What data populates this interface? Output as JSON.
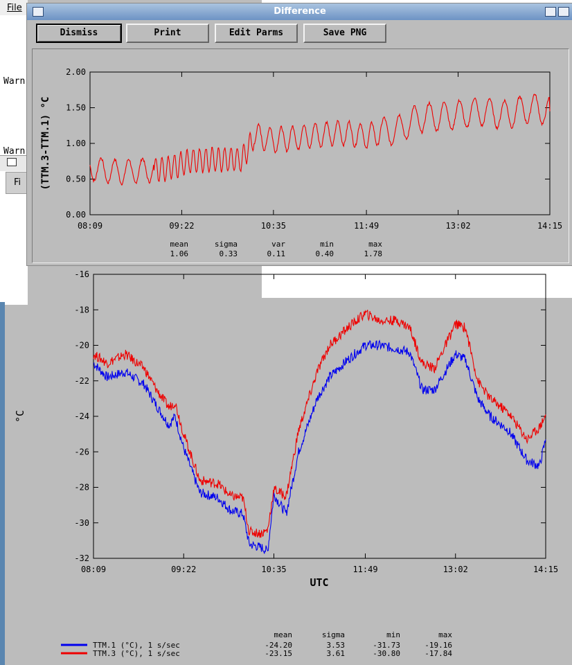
{
  "background_app": {
    "menu_file": "File",
    "warn_1": "Warn",
    "warn_2": "Warn",
    "sub_menu_fi": "Fi"
  },
  "difference_window": {
    "title": "Difference",
    "buttons": {
      "dismiss": "Dismiss",
      "print": "Print",
      "edit_parms": "Edit Parms",
      "save_png": "Save PNG"
    },
    "ylabel": "(TTM.3-TTM.1) °C",
    "stats": {
      "headers": [
        "mean",
        "sigma",
        "var",
        "min",
        "max"
      ],
      "values": [
        "1.06",
        "0.33",
        "0.11",
        "0.40",
        "1.78"
      ]
    }
  },
  "main_plot": {
    "ylabel": "°C",
    "xlabel": "UTC",
    "legend": [
      {
        "label": "TTM.1 (°C), 1 s/sec",
        "color": "#0000ee",
        "mean": "-24.20",
        "sigma": "3.53",
        "min": "-31.73",
        "max": "-19.16"
      },
      {
        "label": "TTM.3 (°C), 1 s/sec",
        "color": "#ee0000",
        "mean": "-23.15",
        "sigma": "3.61",
        "min": "-30.80",
        "max": "-17.84"
      }
    ],
    "stat_headers": [
      "mean",
      "sigma",
      "min",
      "max"
    ]
  },
  "chart_data": [
    {
      "type": "line",
      "ylabel": "(TTM.3-TTM.1) °C",
      "xlabel": "",
      "x_ticks": [
        "08:09",
        "09:22",
        "10:35",
        "11:49",
        "13:02",
        "14:15"
      ],
      "y_ticks": [
        "0.00",
        "0.50",
        "1.00",
        "1.50",
        "2.00"
      ],
      "ylim": [
        0,
        2
      ],
      "grid": false,
      "series": [
        {
          "color": "#ee0000",
          "x": [
            "08:09",
            "08:30",
            "08:50",
            "09:10",
            "09:30",
            "09:50",
            "10:10",
            "10:20",
            "10:35",
            "10:50",
            "11:10",
            "11:30",
            "11:49",
            "12:00",
            "12:15",
            "12:30",
            "12:45",
            "13:02",
            "13:20",
            "13:40",
            "14:00",
            "14:15"
          ],
          "values": [
            0.65,
            0.6,
            0.62,
            0.65,
            0.75,
            0.78,
            0.77,
            1.1,
            1.05,
            1.07,
            1.12,
            1.15,
            1.1,
            1.15,
            1.2,
            1.35,
            1.38,
            1.4,
            1.45,
            1.4,
            1.5,
            1.45
          ]
        }
      ]
    },
    {
      "type": "line",
      "ylabel": "°C",
      "xlabel": "UTC",
      "x_ticks": [
        "08:09",
        "09:22",
        "10:35",
        "11:49",
        "13:02",
        "14:15"
      ],
      "y_ticks": [
        "-16",
        "-18",
        "-20",
        "-22",
        "-24",
        "-26",
        "-28",
        "-30",
        "-32"
      ],
      "ylim": [
        -32,
        -16
      ],
      "grid": false,
      "legend": "bottom-left",
      "series": [
        {
          "name": "TTM.1 (°C), 1 s/sec",
          "color": "#0000ee",
          "x": [
            "08:09",
            "08:20",
            "08:35",
            "08:50",
            "09:00",
            "09:10",
            "09:15",
            "09:22",
            "09:35",
            "09:50",
            "10:00",
            "10:10",
            "10:15",
            "10:25",
            "10:30",
            "10:35",
            "10:45",
            "10:55",
            "11:10",
            "11:20",
            "11:35",
            "11:49",
            "12:00",
            "12:15",
            "12:25",
            "12:35",
            "12:45",
            "13:02",
            "13:10",
            "13:20",
            "13:30",
            "13:45",
            "14:00",
            "14:10",
            "14:15"
          ],
          "values": [
            -21.0,
            -21.8,
            -21.5,
            -22.2,
            -23.4,
            -24.5,
            -24.0,
            -25.8,
            -28.3,
            -28.6,
            -29.3,
            -29.5,
            -31.2,
            -31.4,
            -31.6,
            -28.4,
            -29.5,
            -26.0,
            -23.0,
            -21.8,
            -20.8,
            -20.0,
            -20.0,
            -20.2,
            -20.4,
            -22.5,
            -22.5,
            -20.5,
            -20.8,
            -23.0,
            -24.0,
            -24.8,
            -26.5,
            -26.8,
            -25.3
          ]
        },
        {
          "name": "TTM.3 (°C), 1 s/sec",
          "color": "#ee0000",
          "x": [
            "08:09",
            "08:20",
            "08:35",
            "08:50",
            "09:00",
            "09:10",
            "09:15",
            "09:22",
            "09:35",
            "09:50",
            "10:00",
            "10:10",
            "10:15",
            "10:25",
            "10:30",
            "10:35",
            "10:45",
            "10:55",
            "11:10",
            "11:20",
            "11:35",
            "11:49",
            "12:00",
            "12:15",
            "12:25",
            "12:35",
            "12:45",
            "13:02",
            "13:10",
            "13:20",
            "13:30",
            "13:45",
            "14:00",
            "14:10",
            "14:15"
          ],
          "values": [
            -20.5,
            -21.0,
            -20.5,
            -21.3,
            -22.5,
            -23.5,
            -23.2,
            -25.0,
            -27.6,
            -27.8,
            -28.5,
            -28.6,
            -30.5,
            -30.6,
            -30.4,
            -28.1,
            -28.5,
            -24.8,
            -21.5,
            -20.0,
            -19.0,
            -18.2,
            -18.6,
            -18.6,
            -19.0,
            -21.0,
            -21.3,
            -18.8,
            -19.0,
            -22.0,
            -23.0,
            -23.8,
            -25.3,
            -24.6,
            -23.9
          ]
        }
      ]
    }
  ]
}
